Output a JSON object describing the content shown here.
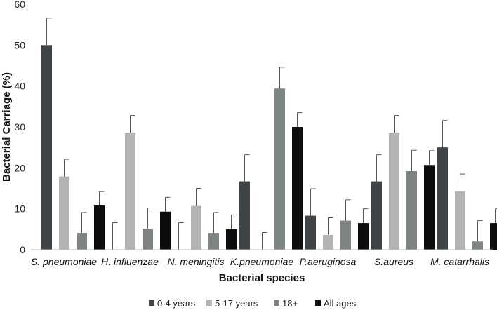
{
  "chart_data": {
    "type": "bar",
    "title": "",
    "xlabel": "Bacterial species",
    "ylabel": "Bacterial Carriage (%)",
    "ylim": [
      0,
      60
    ],
    "yticks": [
      0,
      10,
      20,
      30,
      40,
      50,
      60
    ],
    "grid": false,
    "legend": "bottom",
    "categories": [
      "S. pneumoniae",
      "H. influenzae",
      "N. meningitis",
      "K.pneumoniae",
      "P.aeruginosa",
      "S.aureus",
      "M. catarrhalis"
    ],
    "series": [
      {
        "name": "0-4 years",
        "color": "#3f4447",
        "values": [
          50,
          0,
          0,
          16.7,
          8.3,
          16.7,
          25
        ],
        "error_upper": [
          56.6,
          6.6,
          6.6,
          23.2,
          14.9,
          23.2,
          31.6
        ]
      },
      {
        "name": "5-17 years",
        "color": "#b3b5b5",
        "values": [
          17.9,
          28.6,
          10.7,
          0,
          3.6,
          28.6,
          14.3
        ],
        "error_upper": [
          22.1,
          32.8,
          15.0,
          4.2,
          7.8,
          32.8,
          18.5
        ]
      },
      {
        "name": "18+",
        "color": "#7e8384",
        "values": [
          4.1,
          5.1,
          4.1,
          39.4,
          7.1,
          19.2,
          2.0
        ],
        "error_upper": [
          9.1,
          10.2,
          9.1,
          44.6,
          12.2,
          24.3,
          7.1
        ]
      },
      {
        "name": "All ages",
        "color": "#0d0d0d",
        "values": [
          10.8,
          9.3,
          5.0,
          30.0,
          6.5,
          20.7,
          6.5
        ],
        "error_upper": [
          14.2,
          12.8,
          8.5,
          33.5,
          10.0,
          24.2,
          10.0
        ]
      }
    ]
  }
}
